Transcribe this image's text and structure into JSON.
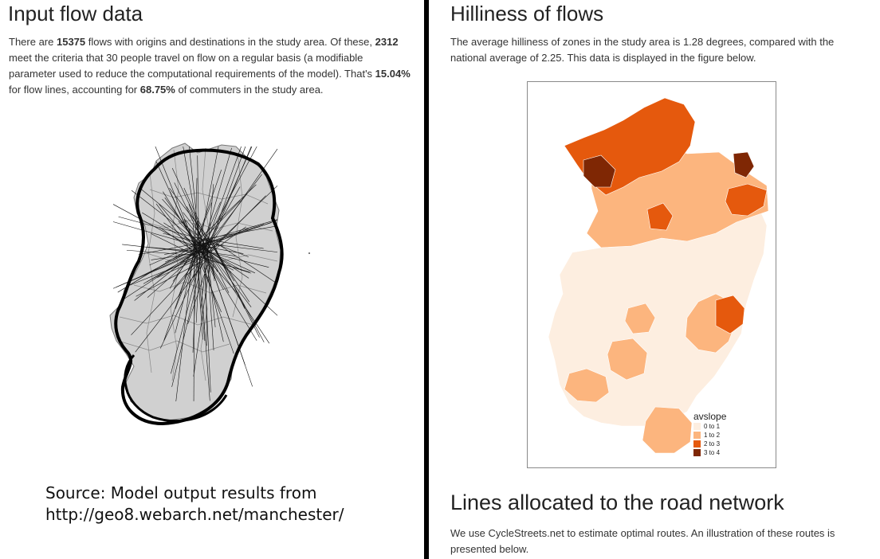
{
  "left": {
    "title": "Input flow data",
    "paragraph": {
      "p1": "There are ",
      "flows": "15375",
      "p2": " flows with origins and destinations in the study area. Of these, ",
      "meet": "2312",
      "p3": " meet the criteria that 30 people travel on flow on a regular basis (a modifiable parameter used to reduce the computational requirements of the model). That's ",
      "pct_lines": "15.04%",
      "p4": " for flow lines, accounting for ",
      "pct_commuters": "68.75%",
      "p5": " of commuters in the study area."
    },
    "source_line1": "Source: Model output results from",
    "source_line2": "http://geo8.webarch.net/manchester/"
  },
  "right": {
    "title": "Hilliness of flows",
    "paragraph": "The average hilliness of zones in the study area is 1.28 degrees, compared with the national average of 2.25. This data is displayed in the figure below.",
    "legend": {
      "title": "avslope",
      "items": [
        {
          "label": "0 to 1",
          "color": "#fdeee0"
        },
        {
          "label": "1 to 2",
          "color": "#fcb57e"
        },
        {
          "label": "2 to 3",
          "color": "#e5590d"
        },
        {
          "label": "3 to 4",
          "color": "#7f2704"
        }
      ]
    },
    "title2": "Lines allocated to the road network",
    "paragraph2": "We use CycleStreets.net to estimate optimal routes. An illustration of these routes is presented below."
  }
}
